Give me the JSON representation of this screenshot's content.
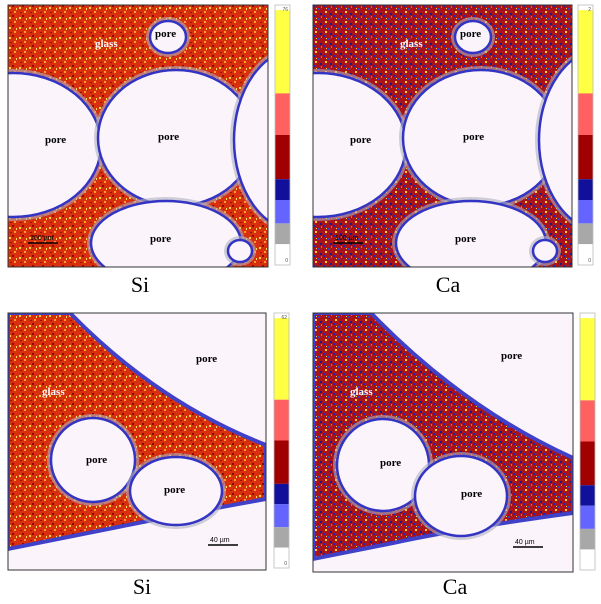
{
  "panels": [
    {
      "caption": "Si",
      "scale_bar": "100 µm",
      "colorbar": {
        "max": 76,
        "min": 0
      },
      "labels": [
        "glass",
        "pore",
        "pore",
        "pore",
        "pore"
      ]
    },
    {
      "caption": "Ca",
      "scale_bar": "100 µm",
      "colorbar": {
        "max": 2,
        "min": 0
      },
      "labels": [
        "glass",
        "pore",
        "pore",
        "pore",
        "pore"
      ]
    },
    {
      "caption": "Si",
      "scale_bar": "40 µm",
      "colorbar": {
        "max": 62,
        "min": 0
      },
      "labels": [
        "pore",
        "glass",
        "pore",
        "pore"
      ]
    },
    {
      "caption": "Ca",
      "scale_bar": "40 µm",
      "colorbar": {},
      "labels": [
        "pore",
        "glass",
        "pore",
        "pore"
      ]
    }
  ]
}
